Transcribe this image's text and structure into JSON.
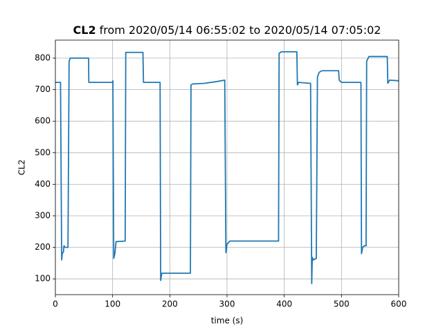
{
  "chart_data": {
    "type": "line",
    "title": {
      "bold": "CL2",
      "rest": "from 2020/05/14 06:55:02 to 2020/05/14 07:05:02"
    },
    "x_label": "time (s)",
    "y_label": "CL2",
    "x": [
      0,
      9,
      11,
      12,
      14,
      15,
      17,
      22,
      24,
      26,
      30,
      58,
      58.5,
      100,
      100.5,
      102,
      104,
      106,
      122,
      123,
      153,
      154,
      183,
      184,
      186,
      236,
      237,
      240,
      260,
      280,
      296,
      298,
      300,
      305,
      390,
      391,
      395,
      422,
      423,
      425,
      446,
      448,
      449,
      451,
      456,
      458,
      461,
      466,
      495,
      496,
      500,
      534,
      535,
      537,
      540,
      543,
      544,
      548,
      580,
      581,
      584,
      600
    ],
    "values": [
      723,
      723,
      160,
      180,
      185,
      205,
      200,
      200,
      790,
      800,
      800,
      800,
      723,
      723,
      728,
      165,
      180,
      218,
      220,
      818,
      818,
      723,
      723,
      95,
      118,
      118,
      715,
      718,
      720,
      725,
      730,
      183,
      210,
      220,
      220,
      815,
      820,
      820,
      715,
      723,
      720,
      85,
      168,
      160,
      165,
      740,
      755,
      760,
      760,
      730,
      723,
      723,
      180,
      200,
      205,
      205,
      790,
      805,
      805,
      720,
      730,
      728
    ],
    "color": "#1f77b4",
    "xlim": [
      0,
      600
    ],
    "ylim": [
      50,
      857
    ],
    "xticks": [
      0,
      100,
      200,
      300,
      400,
      500,
      600
    ],
    "yticks": [
      100,
      200,
      300,
      400,
      500,
      600,
      700,
      800
    ],
    "grid": true
  }
}
